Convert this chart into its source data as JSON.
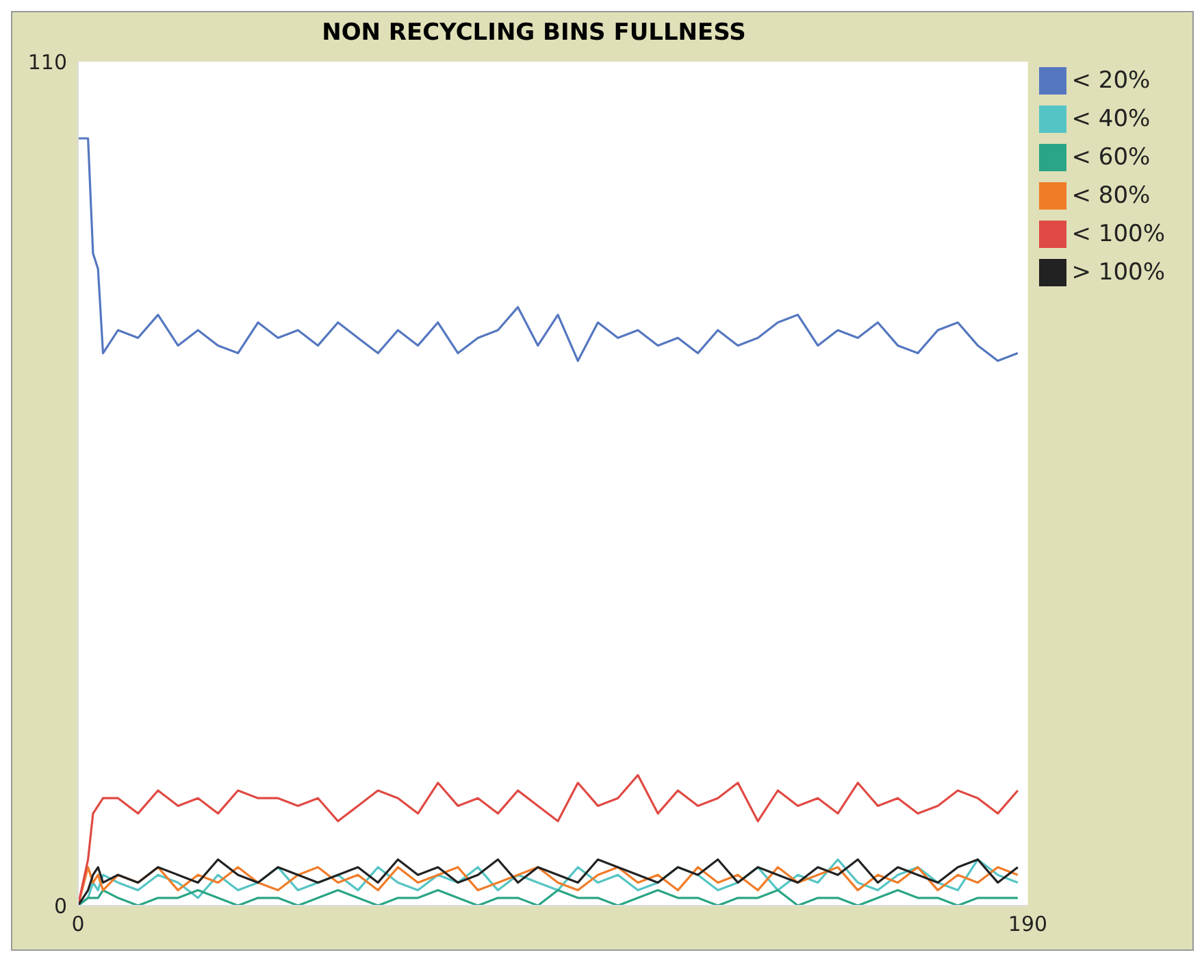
{
  "chart_data": {
    "type": "line",
    "title": "NON RECYCLING BINS FULLNESS",
    "x": [
      0,
      2,
      3,
      4,
      5,
      8,
      12,
      16,
      20,
      24,
      28,
      32,
      36,
      40,
      44,
      48,
      52,
      56,
      60,
      64,
      68,
      72,
      76,
      80,
      84,
      88,
      92,
      96,
      100,
      104,
      108,
      112,
      116,
      120,
      124,
      128,
      132,
      136,
      140,
      144,
      148,
      152,
      156,
      160,
      164,
      168,
      172,
      176,
      180,
      184,
      188
    ],
    "series": [
      {
        "name": "< 20%",
        "color": "#5577c0",
        "values": [
          100,
          100,
          85,
          83,
          72,
          75,
          74,
          77,
          73,
          75,
          73,
          72,
          76,
          74,
          75,
          73,
          76,
          74,
          72,
          75,
          73,
          76,
          72,
          74,
          75,
          78,
          73,
          77,
          71,
          76,
          74,
          75,
          73,
          74,
          72,
          75,
          73,
          74,
          76,
          77,
          73,
          75,
          74,
          76,
          73,
          72,
          75,
          76,
          73,
          71,
          72
        ]
      },
      {
        "name": "< 40%",
        "color": "#55c4c4",
        "values": [
          0,
          1,
          3,
          2,
          4,
          3,
          2,
          4,
          3,
          1,
          4,
          2,
          3,
          5,
          2,
          3,
          4,
          2,
          5,
          3,
          2,
          4,
          3,
          5,
          2,
          4,
          3,
          2,
          5,
          3,
          4,
          2,
          3,
          5,
          4,
          2,
          3,
          5,
          2,
          4,
          3,
          6,
          3,
          2,
          4,
          5,
          3,
          2,
          6,
          4,
          3
        ]
      },
      {
        "name": "< 60%",
        "color": "#2aa585",
        "values": [
          0,
          1,
          1,
          1,
          2,
          1,
          0,
          1,
          1,
          2,
          1,
          0,
          1,
          1,
          0,
          1,
          2,
          1,
          0,
          1,
          1,
          2,
          1,
          0,
          1,
          1,
          0,
          2,
          1,
          1,
          0,
          1,
          2,
          1,
          1,
          0,
          1,
          1,
          2,
          0,
          1,
          1,
          0,
          1,
          2,
          1,
          1,
          0,
          1,
          1,
          1
        ]
      },
      {
        "name": "< 80%",
        "color": "#f07c28",
        "values": [
          0,
          5,
          3,
          4,
          2,
          4,
          3,
          5,
          2,
          4,
          3,
          5,
          3,
          2,
          4,
          5,
          3,
          4,
          2,
          5,
          3,
          4,
          5,
          2,
          3,
          4,
          5,
          3,
          2,
          4,
          5,
          3,
          4,
          2,
          5,
          3,
          4,
          2,
          5,
          3,
          4,
          5,
          2,
          4,
          3,
          5,
          2,
          4,
          3,
          5,
          4
        ]
      },
      {
        "name": "< 100%",
        "color": "#e04a44",
        "values": [
          0,
          6,
          12,
          13,
          14,
          14,
          12,
          15,
          13,
          14,
          12,
          15,
          14,
          14,
          13,
          14,
          11,
          13,
          15,
          14,
          12,
          16,
          13,
          14,
          12,
          15,
          13,
          11,
          16,
          13,
          14,
          17,
          12,
          15,
          13,
          14,
          16,
          11,
          15,
          13,
          14,
          12,
          16,
          13,
          14,
          12,
          13,
          15,
          14,
          12,
          15
        ]
      },
      {
        "name": "> 100%",
        "color": "#222222",
        "values": [
          0,
          2,
          4,
          5,
          3,
          4,
          3,
          5,
          4,
          3,
          6,
          4,
          3,
          5,
          4,
          3,
          4,
          5,
          3,
          6,
          4,
          5,
          3,
          4,
          6,
          3,
          5,
          4,
          3,
          6,
          5,
          4,
          3,
          5,
          4,
          6,
          3,
          5,
          4,
          3,
          5,
          4,
          6,
          3,
          5,
          4,
          3,
          5,
          6,
          3,
          5
        ]
      }
    ],
    "xlim": [
      0,
      190
    ],
    "xticks": [
      0,
      190
    ],
    "ylim": [
      0,
      110
    ],
    "yticks": [
      0,
      110
    ],
    "grid": false,
    "legend": "top right"
  }
}
